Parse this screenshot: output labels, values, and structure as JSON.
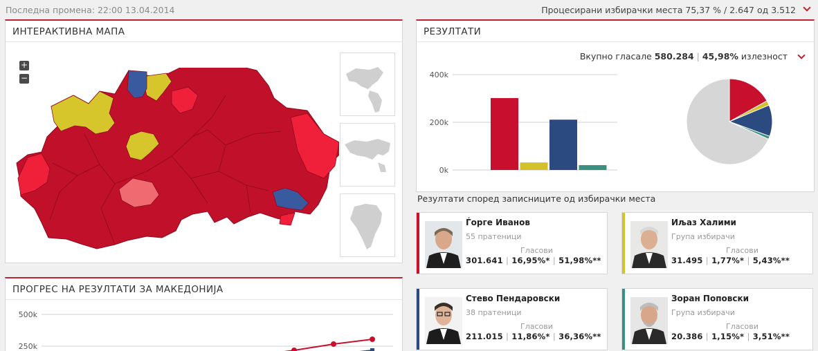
{
  "top": {
    "last_change": "Последна промена: 22:00 13.04.2014",
    "processed": "Процесирани избирачки места 75,37 % / 2.647 од 3.512"
  },
  "map_panel": {
    "title": "ИНТЕРАКТИВНА МАПА",
    "zoom_in": "+",
    "zoom_out": "−"
  },
  "results_panel": {
    "title": "РЕЗУЛТАТИ",
    "total_label": "Вкупно гласале",
    "total_value": "580.284",
    "turnout_value": "45,98%",
    "turnout_label": "излезност"
  },
  "colors": {
    "ivanov": "#c8102e",
    "halimi": "#d4c02a",
    "pendarovski": "#2a4a80",
    "popovski": "#3a9080",
    "remaining": "#d6d6d6",
    "accent": "#c0202f"
  },
  "chart_data": [
    {
      "type": "bar",
      "ylim": [
        0,
        400000
      ],
      "yticks": [
        "0k",
        "200k",
        "400k"
      ],
      "categories": [
        "Ѓорге Иванов",
        "Иљаз Халими",
        "Стево Пендаровски",
        "Зоран Поповски"
      ],
      "values": [
        301641,
        31495,
        211015,
        20386
      ]
    },
    {
      "type": "pie",
      "labels": [
        "Ѓорге Иванов",
        "Иљаз Халими",
        "Стево Пендаровски",
        "Зоран Поповски",
        "other"
      ],
      "values": [
        16.95,
        1.77,
        11.86,
        1.15,
        68.27
      ]
    },
    {
      "type": "line",
      "title": "ПРОГРЕС НА РЕЗУЛТАТИ ЗА МАКЕДОНИЈА",
      "yticks": [
        "500k",
        "250k"
      ],
      "ylim": [
        0,
        500000
      ]
    }
  ],
  "section_label": "Резултати според записниците од избирачки места",
  "candidates": [
    {
      "name": "Ѓорге Иванов",
      "sub": "55 пратеници",
      "votes_label": "Гласови",
      "votes": "301.641",
      "pct1": "16,95%*",
      "pct2": "51,98%**"
    },
    {
      "name": "Иљаз Халими",
      "sub": "Група избирачи",
      "votes_label": "Гласови",
      "votes": "31.495",
      "pct1": "1,77%*",
      "pct2": "5,43%**"
    },
    {
      "name": "Стево Пендаровски",
      "sub": "38 пратеници",
      "votes_label": "Гласови",
      "votes": "211.015",
      "pct1": "11,86%*",
      "pct2": "36,36%**"
    },
    {
      "name": "Зоран Поповски",
      "sub": "Група избирачи",
      "votes_label": "Гласови",
      "votes": "20.386",
      "pct1": "1,15%*",
      "pct2": "3,51%**"
    }
  ]
}
